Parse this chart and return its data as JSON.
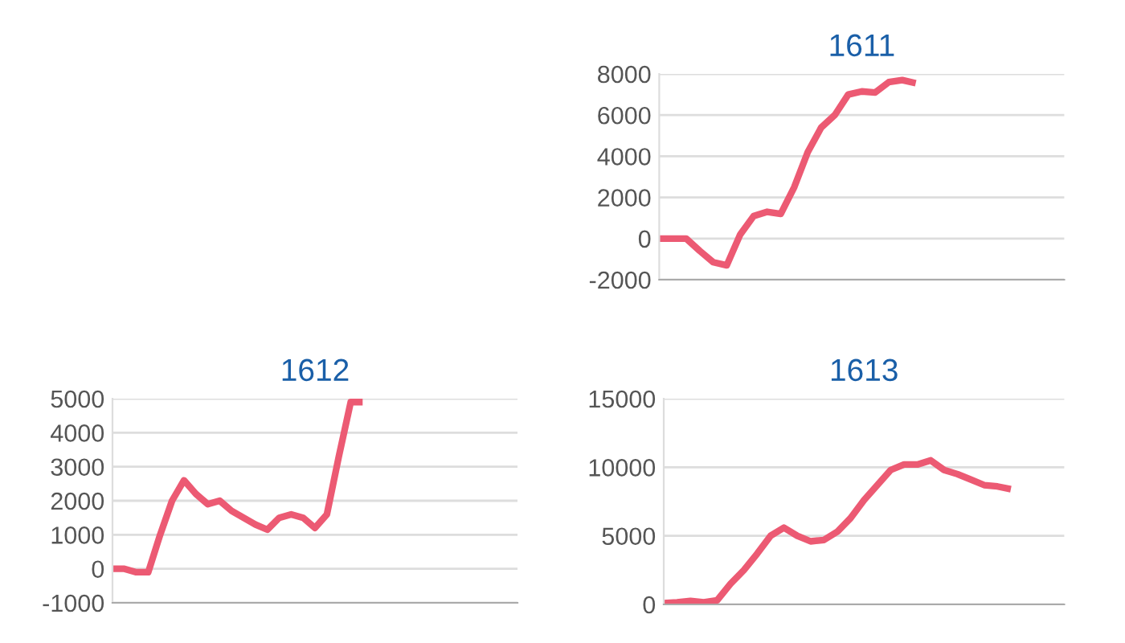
{
  "chart_data": [
    {
      "type": "line",
      "title": "1611",
      "categories": [
        null,
        null,
        null,
        null,
        null,
        null,
        null,
        null,
        null,
        null,
        null,
        null,
        null,
        null,
        null,
        null,
        null,
        null,
        null,
        null,
        null,
        null,
        null,
        null,
        null,
        null,
        null,
        null,
        null,
        null,
        null
      ],
      "series": [
        {
          "color": "#ec5a73",
          "values": [
            0,
            0,
            0,
            -600,
            -1150,
            -1300,
            200,
            1100,
            1300,
            1200,
            2500,
            4200,
            5400,
            6000,
            7000,
            7150,
            7100,
            7600,
            7700,
            7550,
            null,
            null,
            null,
            null,
            null,
            null,
            null,
            null,
            null,
            null,
            null
          ]
        }
      ],
      "ylim": [
        -2000,
        8000
      ],
      "yticks": [
        -2000,
        0,
        2000,
        4000,
        6000,
        8000
      ],
      "grid": "y",
      "tick_labels": "y",
      "marker": "none",
      "line_style": "solid",
      "legend": false
    },
    {
      "type": "line",
      "title": "1612",
      "categories": [
        null,
        null,
        null,
        null,
        null,
        null,
        null,
        null,
        null,
        null,
        null,
        null,
        null,
        null,
        null,
        null,
        null,
        null,
        null,
        null,
        null,
        null,
        null,
        null,
        null,
        null,
        null,
        null,
        null,
        null,
        null,
        null,
        null,
        null,
        null
      ],
      "series": [
        {
          "color": "#ec5a73",
          "values": [
            0,
            0,
            -100,
            -100,
            1000,
            2000,
            2600,
            2200,
            1900,
            2000,
            1700,
            1500,
            1300,
            1150,
            1500,
            1600,
            1500,
            1200,
            1600,
            3300,
            4900,
            4900,
            null,
            null,
            null,
            null,
            null,
            null,
            null,
            null,
            null,
            null,
            null,
            null,
            null
          ]
        }
      ],
      "ylim": [
        -1000,
        5000
      ],
      "yticks": [
        -1000,
        0,
        1000,
        2000,
        3000,
        4000,
        5000
      ],
      "grid": "y",
      "tick_labels": "y",
      "marker": "none",
      "line_style": "solid",
      "legend": false
    },
    {
      "type": "line",
      "title": "1613",
      "categories": [
        null,
        null,
        null,
        null,
        null,
        null,
        null,
        null,
        null,
        null,
        null,
        null,
        null,
        null,
        null,
        null,
        null,
        null,
        null,
        null,
        null,
        null,
        null,
        null,
        null,
        null,
        null,
        null,
        null,
        null,
        null
      ],
      "series": [
        {
          "color": "#ec5a73",
          "values": [
            100,
            150,
            250,
            150,
            300,
            1500,
            2500,
            3700,
            5000,
            5600,
            5000,
            4600,
            4700,
            5300,
            6300,
            7600,
            8700,
            9800,
            10200,
            10200,
            10500,
            9800,
            9500,
            9100,
            8700,
            8600,
            8400,
            null,
            null,
            null,
            null
          ]
        }
      ],
      "ylim": [
        0,
        15000
      ],
      "yticks": [
        0,
        5000,
        10000,
        15000
      ],
      "grid": "y",
      "tick_labels": "y",
      "marker": "none",
      "line_style": "solid",
      "legend": false
    }
  ]
}
